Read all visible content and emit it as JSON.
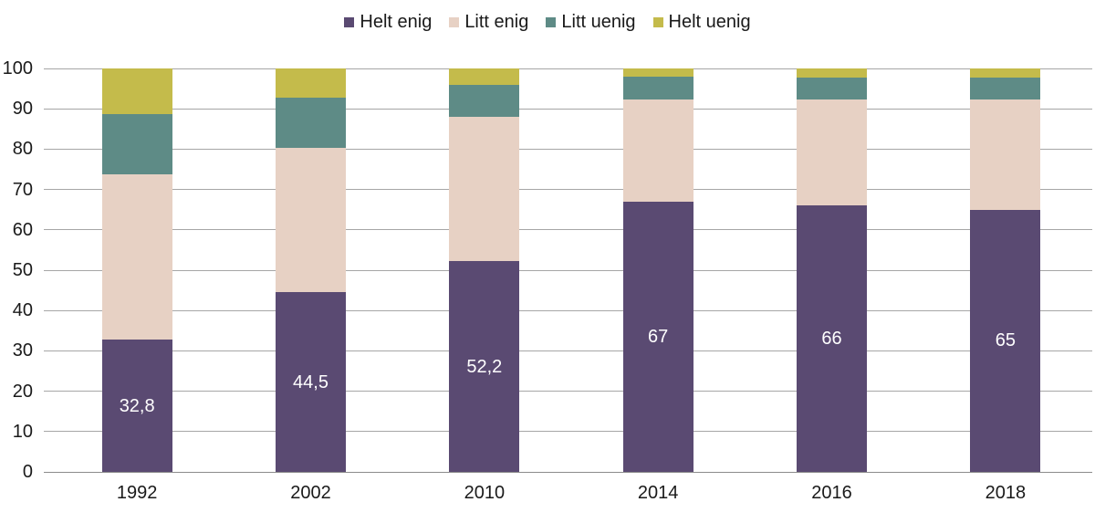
{
  "chart_data": {
    "type": "bar",
    "stacked": true,
    "title": "",
    "xlabel": "",
    "ylabel": "",
    "categories": [
      "1992",
      "2002",
      "2010",
      "2014",
      "2016",
      "2018"
    ],
    "series": [
      {
        "name": "Helt enig",
        "color": "#5a4a72",
        "values": [
          32.8,
          44.5,
          52.2,
          67,
          66,
          65
        ],
        "data_labels": [
          "32,8",
          "44,5",
          "52,2",
          "67",
          "66",
          "65"
        ],
        "data_label_color": "#ffffff"
      },
      {
        "name": "Litt enig",
        "color": "#e7d1c4",
        "values": [
          41.0,
          35.9,
          35.8,
          25.3,
          26.3,
          27.2
        ]
      },
      {
        "name": "Litt uenig",
        "color": "#5e8b86",
        "values": [
          14.8,
          12.3,
          8.0,
          5.6,
          5.4,
          5.6
        ]
      },
      {
        "name": "Helt uenig",
        "color": "#c4bb4b",
        "values": [
          11.4,
          7.3,
          4.0,
          2.1,
          2.3,
          2.2
        ]
      }
    ],
    "ylim": [
      0,
      100
    ],
    "yticks": [
      0,
      10,
      20,
      30,
      40,
      50,
      60,
      70,
      80,
      90,
      100
    ],
    "grid": true,
    "gridline_color": "#a6a6a6",
    "axis_line_color": "#8c8c8c",
    "tick_label_color": "#1a1a1a",
    "legend_position": "top"
  }
}
